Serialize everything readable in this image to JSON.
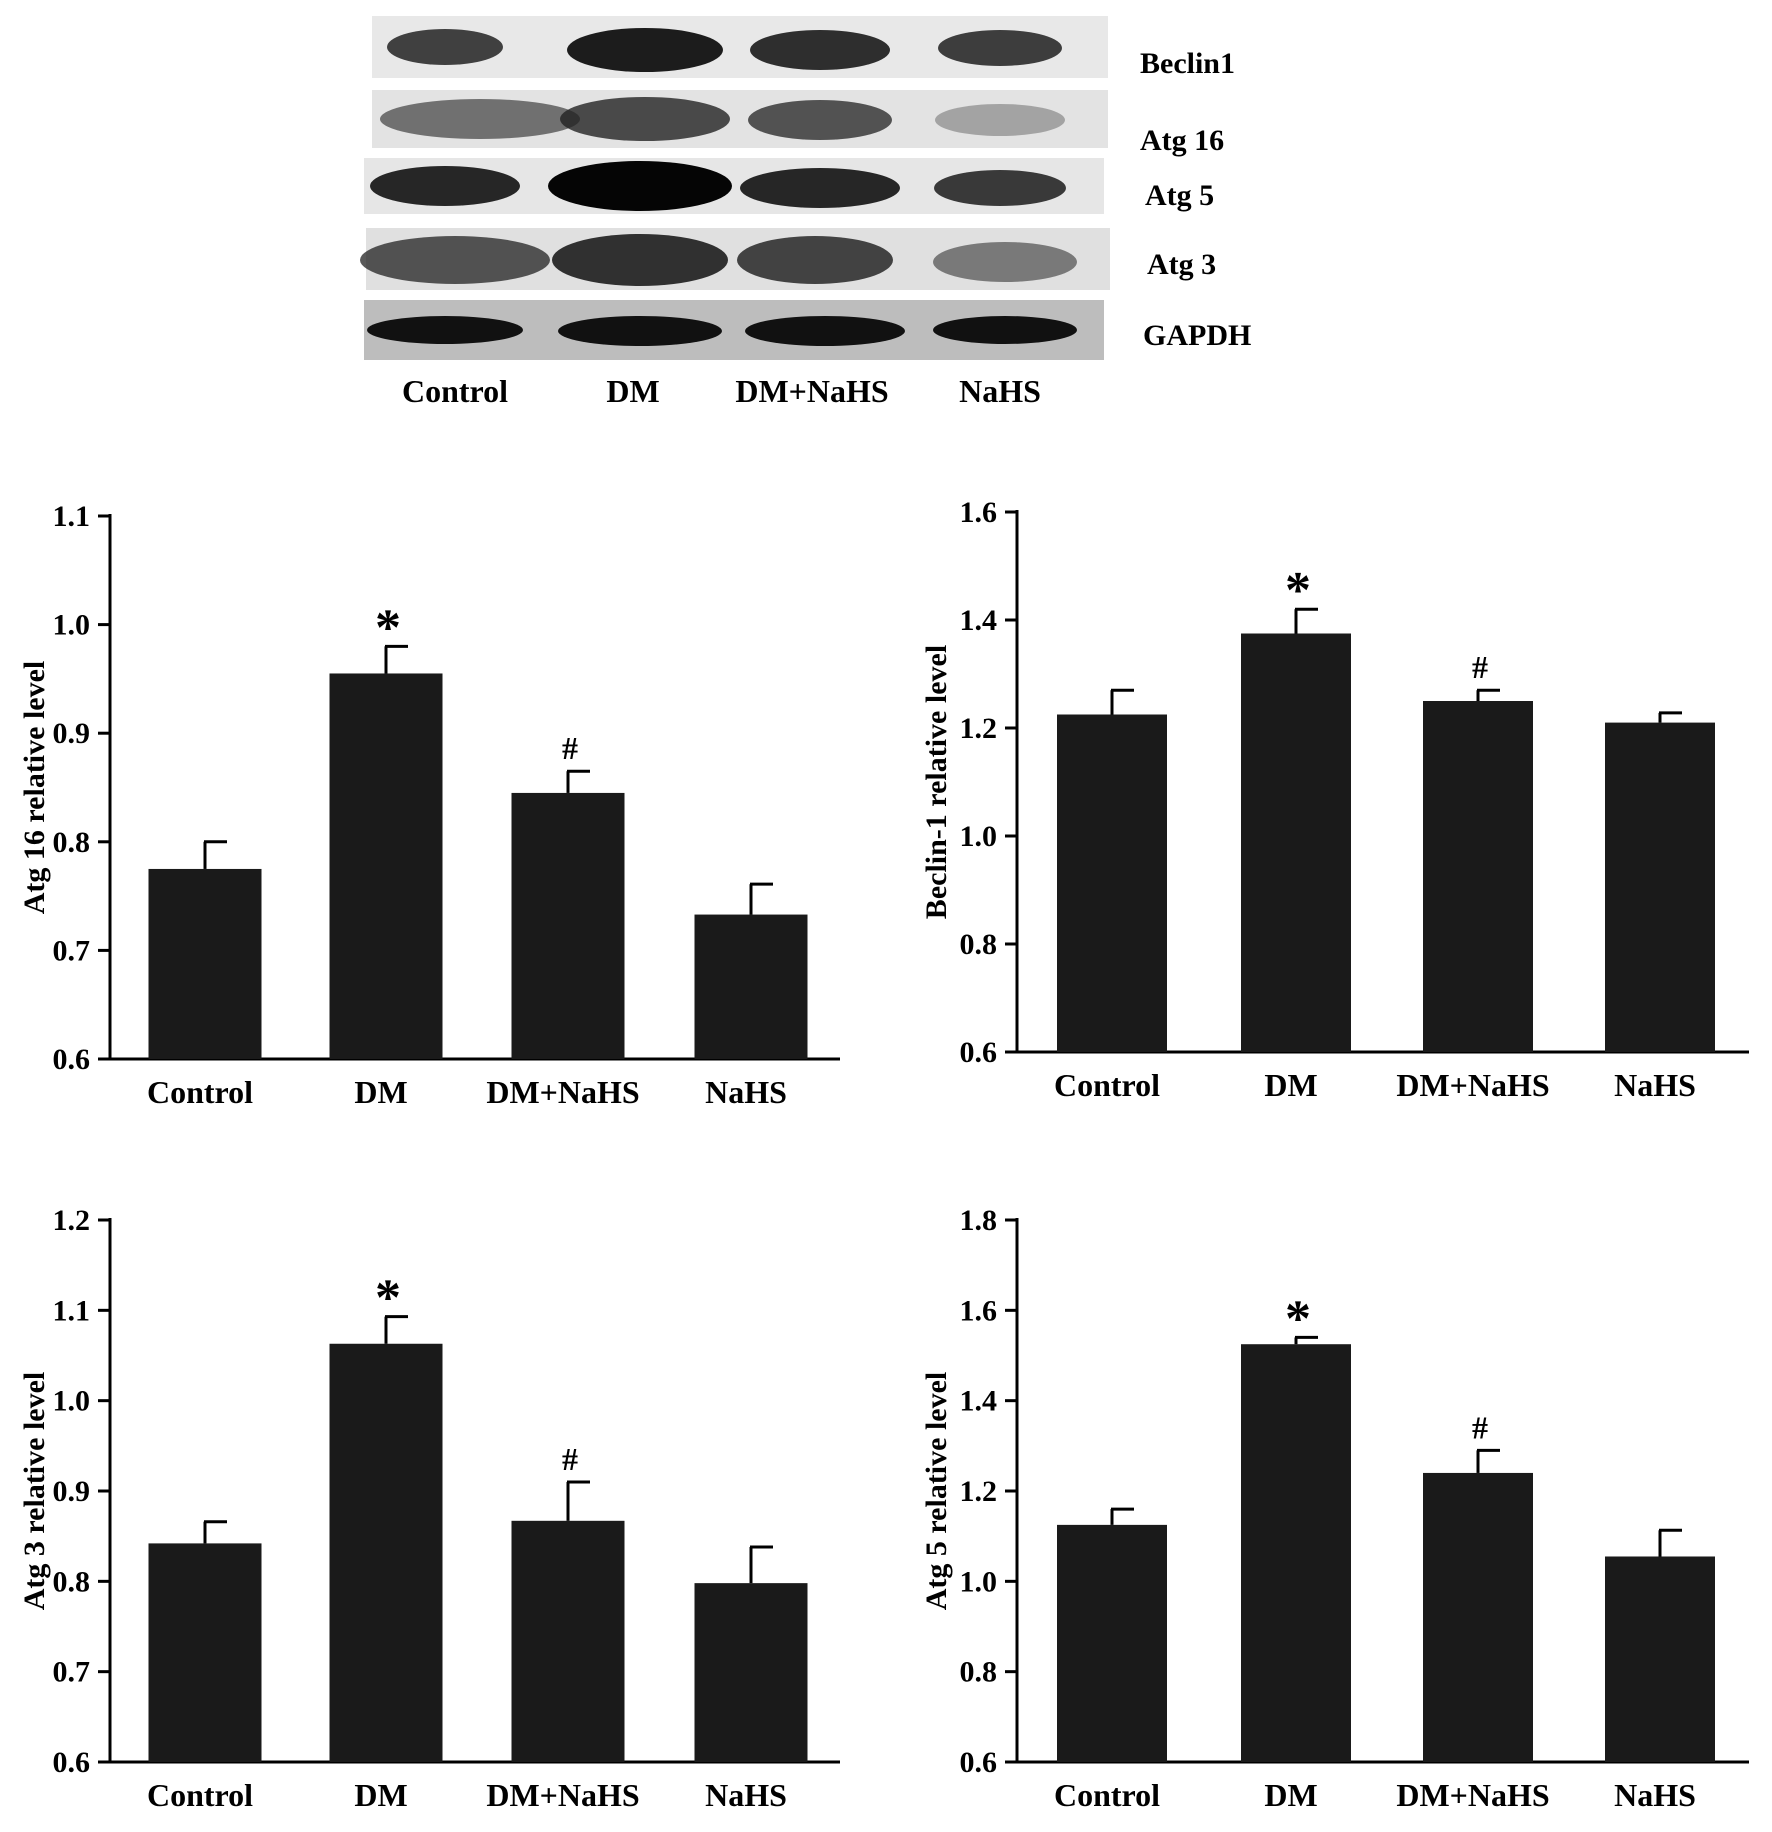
{
  "colors": {
    "bar": "#1a1a1a",
    "axis": "#000000",
    "background": "#ffffff"
  },
  "western_blot": {
    "bands": [
      "Beclin1",
      "Atg 16",
      "Atg 5",
      "Atg 3",
      "GAPDH"
    ],
    "lanes": [
      "Control",
      "DM",
      "DM+NaHS",
      "NaHS"
    ]
  },
  "chart_data": [
    {
      "type": "bar",
      "position": "top-left",
      "title": "",
      "xlabel": "",
      "ylabel": "Atg 16 relative level",
      "categories": [
        "Control",
        "DM",
        "DM+NaHS",
        "NaHS"
      ],
      "values": [
        0.775,
        0.955,
        0.845,
        0.733
      ],
      "errors": [
        0.025,
        0.025,
        0.02,
        0.028
      ],
      "annotations": [
        "",
        "*",
        "#",
        ""
      ],
      "ylim": [
        0.6,
        1.1
      ],
      "yticks": [
        "0.6",
        "0.7",
        "0.8",
        "0.9",
        "1.0",
        "1.1"
      ]
    },
    {
      "type": "bar",
      "position": "top-right",
      "title": "",
      "xlabel": "",
      "ylabel": "Beclin-1 relative level",
      "categories": [
        "Control",
        "DM",
        "DM+NaHS",
        "NaHS"
      ],
      "values": [
        1.225,
        1.375,
        1.25,
        1.21
      ],
      "errors": [
        0.045,
        0.045,
        0.02,
        0.018
      ],
      "annotations": [
        "",
        "*",
        "#",
        ""
      ],
      "ylim": [
        0.6,
        1.6
      ],
      "yticks": [
        "0.6",
        "0.8",
        "1.0",
        "1.2",
        "1.4",
        "1.6"
      ]
    },
    {
      "type": "bar",
      "position": "bottom-left",
      "title": "",
      "xlabel": "",
      "ylabel": "Atg 3 relative level",
      "categories": [
        "Control",
        "DM",
        "DM+NaHS",
        "NaHS"
      ],
      "values": [
        0.842,
        1.063,
        0.867,
        0.798
      ],
      "errors": [
        0.024,
        0.03,
        0.043,
        0.04
      ],
      "annotations": [
        "",
        "*",
        "#",
        ""
      ],
      "ylim": [
        0.6,
        1.2
      ],
      "yticks": [
        "0.6",
        "0.7",
        "0.8",
        "0.9",
        "1.0",
        "1.1",
        "1.2"
      ]
    },
    {
      "type": "bar",
      "position": "bottom-right",
      "title": "",
      "xlabel": "",
      "ylabel": "Atg 5 relative level",
      "categories": [
        "Control",
        "DM",
        "DM+NaHS",
        "NaHS"
      ],
      "values": [
        1.125,
        1.525,
        1.24,
        1.055
      ],
      "errors": [
        0.035,
        0.015,
        0.05,
        0.058
      ],
      "annotations": [
        "",
        "*",
        "#",
        ""
      ],
      "ylim": [
        0.6,
        1.8
      ],
      "yticks": [
        "0.6",
        "0.8",
        "1.0",
        "1.2",
        "1.4",
        "1.6",
        "1.8"
      ]
    }
  ]
}
